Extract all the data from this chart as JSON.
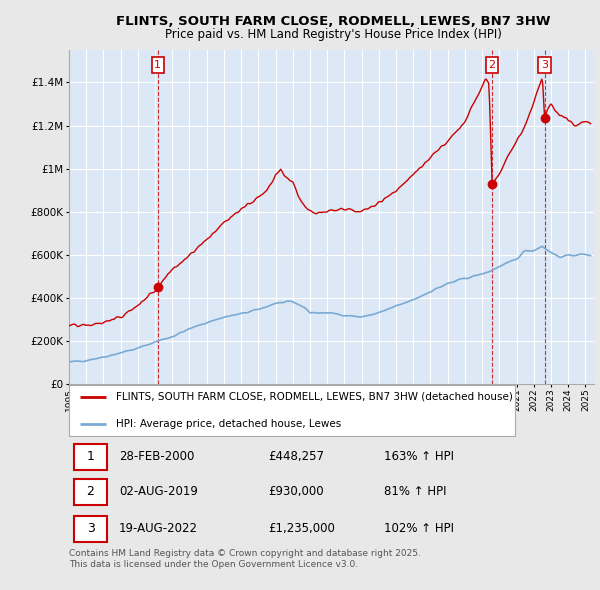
{
  "title": "FLINTS, SOUTH FARM CLOSE, RODMELL, LEWES, BN7 3HW",
  "subtitle": "Price paid vs. HM Land Registry's House Price Index (HPI)",
  "yticks": [
    0,
    200000,
    400000,
    600000,
    800000,
    1000000,
    1200000,
    1400000
  ],
  "ylim": [
    0,
    1550000
  ],
  "xlim_start": 1995.0,
  "xlim_end": 2025.5,
  "sale_color": "#cc0000",
  "hpi_color": "#7aaad4",
  "vline_color": "#cc0000",
  "sale_dates": [
    2000.16,
    2019.58,
    2022.63
  ],
  "sale_prices": [
    448257,
    930000,
    1235000
  ],
  "sale_labels": [
    "1",
    "2",
    "3"
  ],
  "legend_sale": "FLINTS, SOUTH FARM CLOSE, RODMELL, LEWES, BN7 3HW (detached house)",
  "legend_hpi": "HPI: Average price, detached house, Lewes",
  "table_rows": [
    [
      "1",
      "28-FEB-2000",
      "£448,257",
      "163% ↑ HPI"
    ],
    [
      "2",
      "02-AUG-2019",
      "£930,000",
      "81% ↑ HPI"
    ],
    [
      "3",
      "19-AUG-2022",
      "£1,235,000",
      "102% ↑ HPI"
    ]
  ],
  "footnote": "Contains HM Land Registry data © Crown copyright and database right 2025.\nThis data is licensed under the Open Government Licence v3.0.",
  "background_color": "#e8e8e8",
  "plot_background": "#dce8f5",
  "grid_color": "#ffffff",
  "legend_border": "#aaaaaa"
}
